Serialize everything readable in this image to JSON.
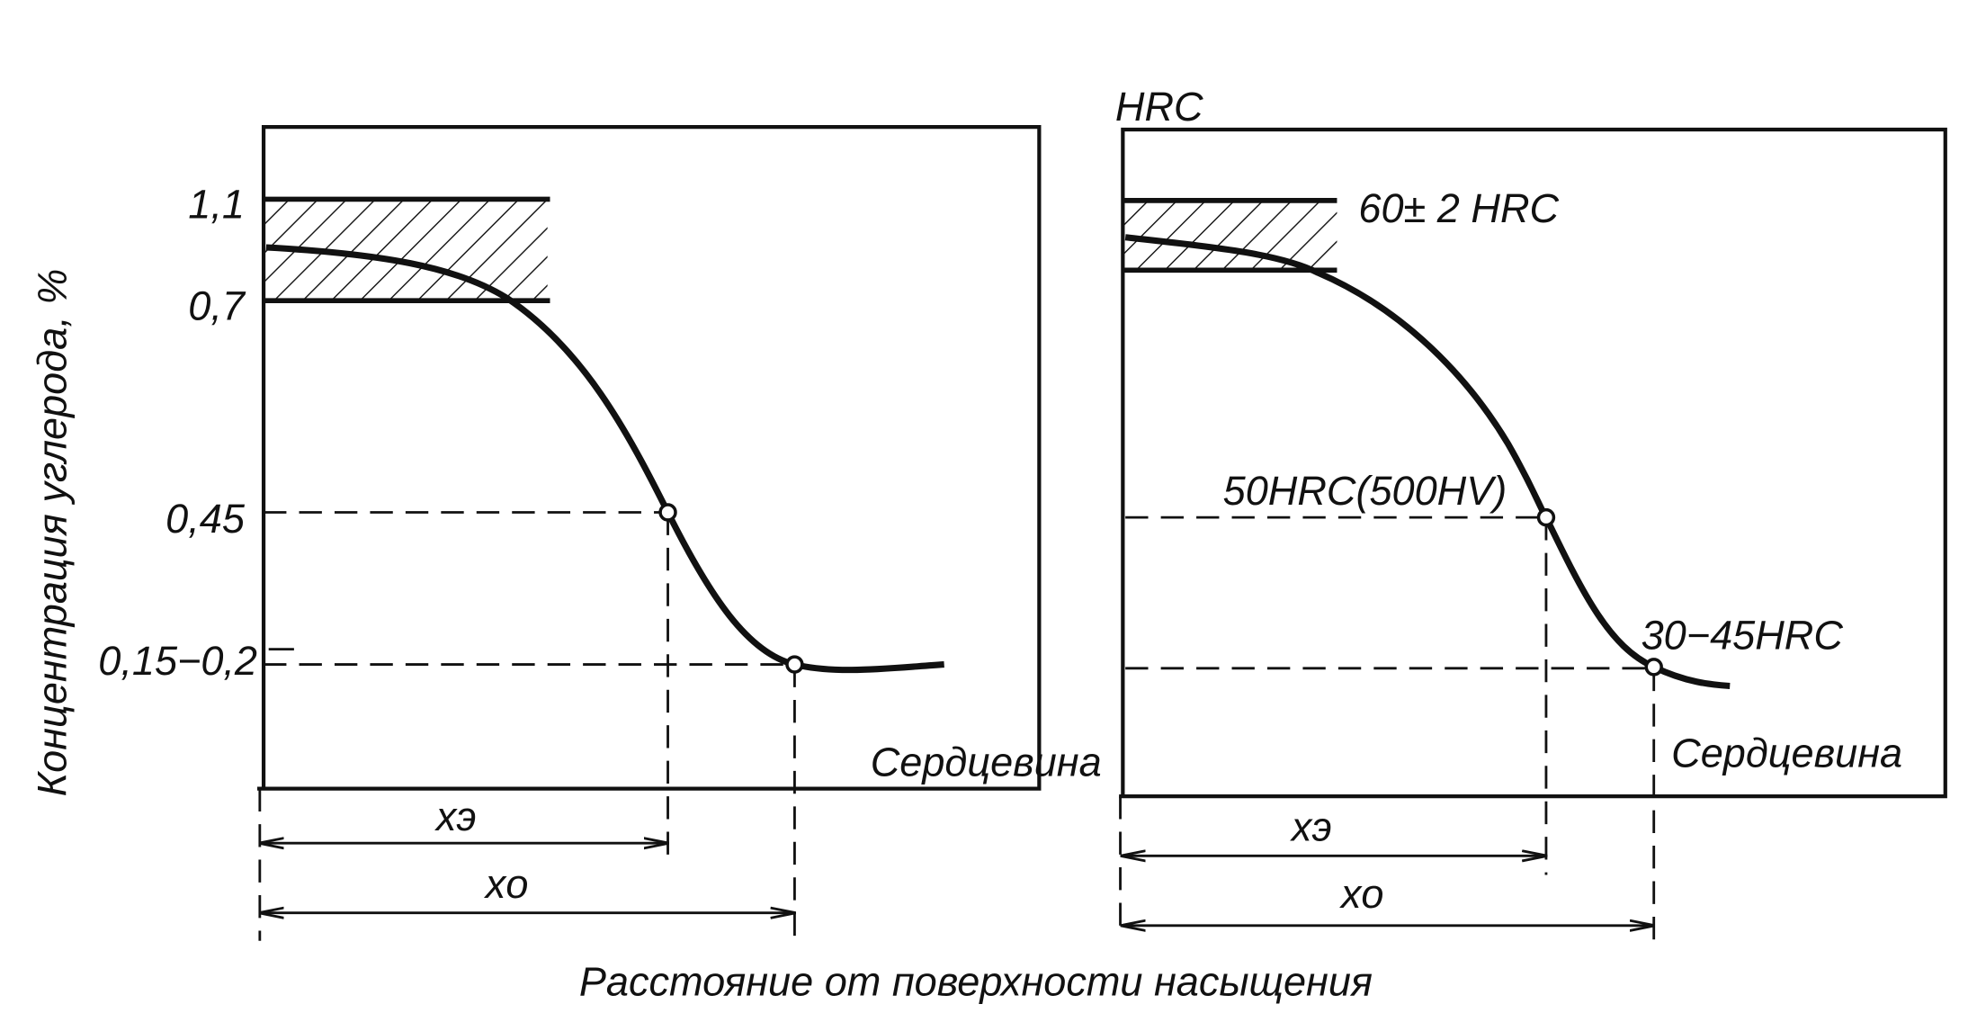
{
  "y_axis_label": "Концентрация углерода, %",
  "x_axis_label": "Расстояние от поверхности насыщения",
  "left_panel": {
    "y_labels": [
      "1,1",
      "0,7",
      "0,45",
      "0,15−0,2"
    ],
    "core_label": "Сердцевина",
    "dim_effective": "xэ",
    "dim_total": "xо"
  },
  "right_panel": {
    "y_unit": "HRC",
    "annotations": [
      "60± 2 HRC",
      "50HRC(500HV)",
      "30−45HRC"
    ],
    "core_label": "Сердцевина",
    "dim_effective": "xэ",
    "dim_total": "xо"
  }
}
